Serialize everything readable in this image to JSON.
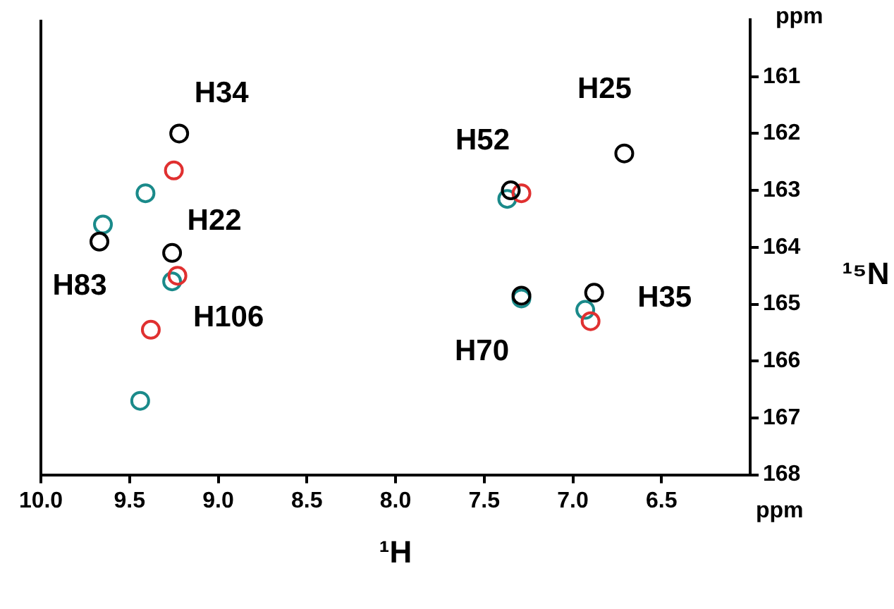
{
  "chart_data": {
    "type": "scatter",
    "xlabel": "¹H",
    "ylabel": "¹⁵N",
    "xlim": [
      10.0,
      6.0
    ],
    "xticks": [
      {
        "value": 10.0,
        "label": "10.0"
      },
      9.5,
      {
        "value": 9.0,
        "label": "9.0"
      },
      8.5,
      {
        "value": 8.0,
        "label": "8.0"
      },
      7.5,
      {
        "value": 7.0,
        "label": "7.0"
      },
      6.5
    ],
    "ylim": [
      168,
      160
    ],
    "yticks": [
      161,
      162,
      163,
      164,
      165,
      166,
      167,
      168
    ],
    "grid": false,
    "legend": false,
    "marker": "circle",
    "series": [
      {
        "color": "#000000",
        "x": [
          9.22,
          9.67,
          9.26,
          6.71,
          7.35,
          7.29,
          6.88
        ],
        "values": [
          162.0,
          163.9,
          164.1,
          162.35,
          163.0,
          164.85,
          164.8
        ]
      },
      {
        "color": "#e03030",
        "x": [
          9.25,
          9.23,
          9.38,
          7.29,
          6.9
        ],
        "values": [
          162.65,
          164.5,
          165.45,
          163.05,
          165.3
        ]
      },
      {
        "color": "#1a8a8a",
        "x": [
          9.41,
          9.65,
          9.26,
          9.44,
          7.37,
          7.29,
          6.93
        ],
        "values": [
          163.05,
          163.6,
          164.6,
          166.7,
          163.15,
          164.9,
          165.1
        ]
      }
    ],
    "annotations": [
      {
        "text": "H34",
        "x": 9.22,
        "y": 162.0
      },
      {
        "text": "H83",
        "x": 9.67,
        "y": 163.9
      },
      {
        "text": "H22",
        "x": 9.26,
        "y": 164.1
      },
      {
        "text": "H106",
        "x": 9.26,
        "y": 164.6
      },
      {
        "text": "H25",
        "x": 6.71,
        "y": 162.35
      },
      {
        "text": "H52",
        "x": 7.35,
        "y": 163.0
      },
      {
        "text": "H70",
        "x": 7.29,
        "y": 164.85
      },
      {
        "text": "H35",
        "x": 6.88,
        "y": 164.8
      },
      "ppm",
      "ppm"
    ]
  }
}
